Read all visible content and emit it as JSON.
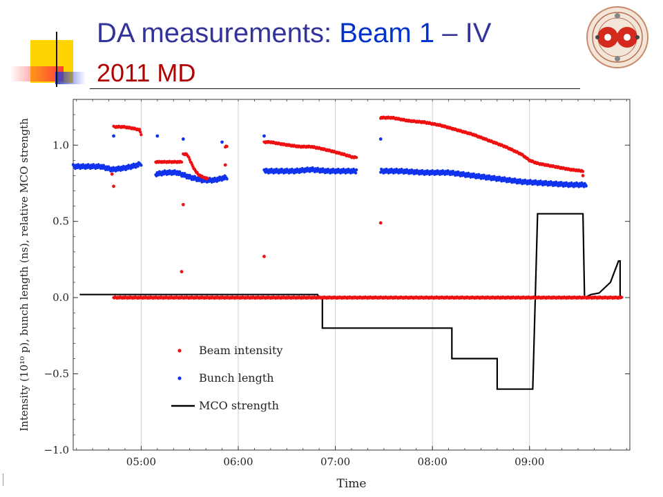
{
  "slide": {
    "title_part1": "DA measurements: ",
    "title_part2": "Beam 1",
    "title_part3": " – IV",
    "subtitle": "2011 MD",
    "logo_icon": "lhc-beam-cross-section-logo"
  },
  "chart_data": {
    "type": "scatter",
    "xlabel": "Time",
    "ylabel": "Intensity (10¹⁰ p), bunch length (ns), relative MCO strength",
    "ylim": [
      -1.0,
      1.3
    ],
    "xlim": [
      "04:18",
      "10:02"
    ],
    "x_ticks": [
      "05:00",
      "06:00",
      "07:00",
      "08:00",
      "09:00"
    ],
    "y_ticks": [
      "−1.0",
      "−0.5",
      "0.0",
      "0.5",
      "1.0"
    ],
    "y_tick_values": [
      -1.0,
      -0.5,
      0.0,
      0.5,
      1.0
    ],
    "grid": "vertical at x ticks",
    "legend_position": "bottom-left",
    "series": [
      {
        "name": "Beam intensity",
        "style": "markers",
        "color": "#ee1111",
        "segments": [
          {
            "x": [
              "04:43",
              "04:49",
              "04:55",
              "04:59",
              "05:00"
            ],
            "y": [
              1.12,
              1.12,
              1.11,
              1.1,
              1.07
            ]
          },
          {
            "x": [
              "05:09",
              "05:13",
              "05:18",
              "05:23",
              "05:25"
            ],
            "y": [
              0.89,
              0.89,
              0.89,
              0.89,
              0.89
            ]
          },
          {
            "x": [
              "05:26",
              "05:28",
              "05:29",
              "05:31",
              "05:33",
              "05:35",
              "05:38",
              "05:41"
            ],
            "y": [
              0.94,
              0.94,
              0.93,
              0.88,
              0.84,
              0.81,
              0.79,
              0.78
            ]
          },
          {
            "x": [
              "05:52",
              "05:53"
            ],
            "y": [
              0.99,
              0.99
            ]
          },
          {
            "x": [
              "06:16",
              "06:20",
              "06:25",
              "06:31",
              "06:38",
              "06:45",
              "06:50",
              "06:58",
              "07:05",
              "07:11",
              "07:13"
            ],
            "y": [
              1.02,
              1.02,
              1.01,
              1.0,
              0.99,
              0.99,
              0.98,
              0.96,
              0.94,
              0.92,
              0.92
            ]
          },
          {
            "x": [
              "07:28",
              "07:35",
              "07:45",
              "07:55",
              "08:05",
              "08:15",
              "08:25",
              "08:35",
              "08:45",
              "08:55",
              "09:00",
              "09:05",
              "09:15",
              "09:25",
              "09:33"
            ],
            "y": [
              1.18,
              1.18,
              1.16,
              1.15,
              1.13,
              1.1,
              1.07,
              1.03,
              0.99,
              0.94,
              0.9,
              0.88,
              0.86,
              0.84,
              0.83
            ]
          },
          {
            "x": [
              "04:43",
              "05:05",
              "05:10",
              "05:25",
              "05:43",
              "06:00",
              "06:15",
              "07:13",
              "07:28",
              "09:34",
              "09:45",
              "09:55",
              "09:57"
            ],
            "y": [
              0.0,
              0.0,
              0.0,
              0.0,
              0.0,
              0.0,
              0.0,
              0.0,
              0.0,
              0.0,
              0.0,
              0.0,
              0.0
            ]
          }
        ],
        "isolated_points": {
          "x": [
            "04:42",
            "04:43",
            "05:25",
            "05:26",
            "05:52",
            "06:16",
            "07:28",
            "09:33"
          ],
          "y": [
            0.81,
            0.73,
            0.17,
            0.61,
            0.87,
            0.27,
            0.49,
            0.8
          ]
        }
      },
      {
        "name": "Bunch length",
        "style": "markers",
        "color": "#1133ee",
        "segments": [
          {
            "x": [
              "04:18",
              "04:25",
              "04:35",
              "04:42",
              "04:50",
              "04:58",
              "05:00"
            ],
            "y": [
              0.86,
              0.86,
              0.86,
              0.84,
              0.85,
              0.87,
              0.88
            ]
          },
          {
            "x": [
              "05:09",
              "05:15",
              "05:22",
              "05:30",
              "05:38",
              "05:45",
              "05:53"
            ],
            "y": [
              0.81,
              0.82,
              0.82,
              0.79,
              0.77,
              0.77,
              0.79
            ]
          },
          {
            "x": [
              "06:16",
              "06:25",
              "06:35",
              "06:45",
              "06:55",
              "07:05",
              "07:13"
            ],
            "y": [
              0.83,
              0.83,
              0.83,
              0.84,
              0.83,
              0.83,
              0.83
            ]
          },
          {
            "x": [
              "07:28",
              "07:40",
              "07:55",
              "08:10",
              "08:25",
              "08:40",
              "08:55",
              "09:10",
              "09:25",
              "09:35"
            ],
            "y": [
              0.83,
              0.83,
              0.82,
              0.82,
              0.8,
              0.78,
              0.76,
              0.75,
              0.74,
              0.74
            ]
          }
        ],
        "isolated_points": {
          "x": [
            "04:43",
            "05:10",
            "05:26",
            "05:50",
            "06:16",
            "07:28"
          ],
          "y": [
            1.06,
            1.06,
            1.04,
            1.02,
            1.06,
            1.04
          ]
        }
      },
      {
        "name": "MCO strength",
        "style": "line",
        "color": "#000000",
        "x": [
          "04:22",
          "06:49",
          "06:50",
          "06:52",
          "06:52",
          "08:12",
          "08:12",
          "08:40",
          "08:40",
          "09:02",
          "09:05",
          "09:33",
          "09:34",
          "09:38",
          "09:43",
          "09:50",
          "09:55",
          "09:56",
          "09:56"
        ],
        "y": [
          0.02,
          0.02,
          0.0,
          0.0,
          -0.2,
          -0.2,
          -0.4,
          -0.4,
          -0.6,
          -0.6,
          0.55,
          0.55,
          0.0,
          0.02,
          0.03,
          0.1,
          0.24,
          0.24,
          0.0
        ]
      }
    ]
  }
}
